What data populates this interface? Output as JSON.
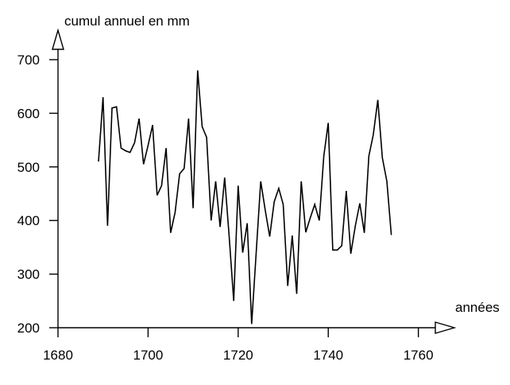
{
  "chart_data": {
    "type": "line",
    "title": "",
    "xlabel": "années",
    "ylabel": "cumul annuel en mm",
    "xlim": [
      1680,
      1765
    ],
    "ylim": [
      200,
      700
    ],
    "x_ticks": [
      1680,
      1700,
      1720,
      1740,
      1760
    ],
    "y_ticks": [
      200,
      300,
      400,
      500,
      600,
      700
    ],
    "grid": false,
    "line_color": "#000000",
    "series": [
      {
        "x": [
          1689,
          1690,
          1691,
          1692,
          1693,
          1694,
          1695,
          1696,
          1697,
          1698,
          1699,
          1700,
          1701,
          1702,
          1703,
          1704,
          1705,
          1706,
          1707,
          1708,
          1709,
          1710,
          1711,
          1712,
          1713,
          1714,
          1715,
          1716,
          1717,
          1718,
          1719,
          1720,
          1721,
          1722,
          1723,
          1724,
          1725,
          1726,
          1727,
          1728,
          1729,
          1730,
          1731,
          1732,
          1733,
          1734,
          1735,
          1736,
          1737,
          1738,
          1739,
          1740,
          1741,
          1742,
          1743,
          1744,
          1745,
          1746,
          1747,
          1748,
          1749,
          1750,
          1751,
          1752,
          1753,
          1754
        ],
        "y": [
          510,
          630,
          390,
          610,
          612,
          535,
          530,
          527,
          545,
          590,
          505,
          540,
          578,
          447,
          465,
          535,
          377,
          415,
          487,
          497,
          590,
          423,
          680,
          575,
          555,
          400,
          473,
          388,
          480,
          370,
          250,
          465,
          340,
          395,
          207,
          340,
          473,
          420,
          370,
          435,
          460,
          430,
          278,
          372,
          263,
          473,
          378,
          405,
          430,
          400,
          520,
          582,
          345,
          345,
          353,
          455,
          338,
          390,
          432,
          377,
          520,
          560,
          625,
          517,
          473,
          373
        ]
      }
    ]
  }
}
